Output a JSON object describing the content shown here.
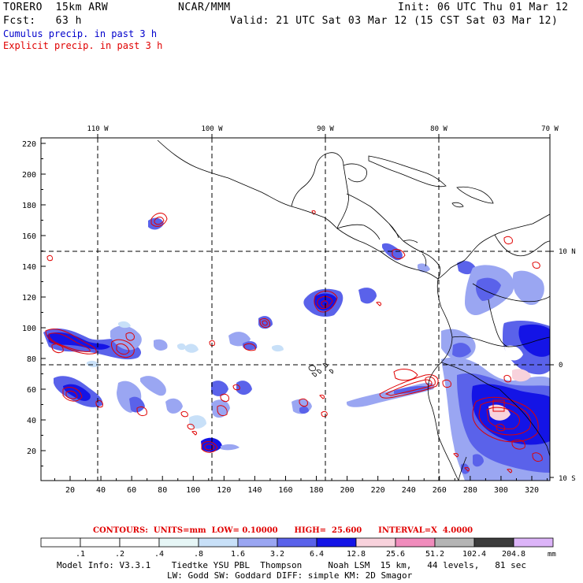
{
  "header": {
    "model": "TORERO  15km ARW",
    "source": "NCAR/MMM",
    "init": "Init: 06 UTC Thu 01 Mar 12",
    "forecast": "Fcst:   63 h",
    "valid": "Valid: 21 UTC Sat 03 Mar 12 (15 CST Sat 03 Mar 12)"
  },
  "legend_lines": {
    "cumulus": "Cumulus precip. in past 3 h",
    "explicit": "Explicit precip. in past 3 h"
  },
  "map": {
    "lon_labels": [
      "110 W",
      "100 W",
      "90 W",
      "80 W",
      "70 W"
    ],
    "lat_labels": [
      "10 N",
      "0",
      "10 S"
    ],
    "x_ticks": [
      "20",
      "40",
      "60",
      "80",
      "100",
      "120",
      "140",
      "160",
      "180",
      "200",
      "220",
      "240",
      "260",
      "280",
      "300",
      "320"
    ],
    "y_ticks": [
      "20",
      "40",
      "60",
      "80",
      "100",
      "120",
      "140",
      "160",
      "180",
      "200",
      "220"
    ]
  },
  "contour_text": "CONTOURS:  UNITS=mm  LOW= 0.10000      HIGH=  25.600      INTERVAL=X  4.0000",
  "colorbar": {
    "labels": [
      ".1",
      ".2",
      ".4",
      ".8",
      "1.6",
      "3.2",
      "6.4",
      "12.8",
      "25.6",
      "51.2",
      "102.4",
      "204.8"
    ],
    "unit": "mm",
    "colors": [
      "#ffffff",
      "#ffffff",
      "#ffffff",
      "#e6f6f6",
      "#c8e0f8",
      "#9aa6f2",
      "#5a62ea",
      "#1414e6",
      "#f8d2dc",
      "#f08cbc",
      "#b4b4b4",
      "#3c3c3c",
      "#dcb4f8"
    ]
  },
  "footer": {
    "line1": "Model Info: V3.3.1    Tiedtke YSU PBL  Thompson     Noah LSM  15 km,   44 levels,   81 sec",
    "line2": "LW: Godd SW: Goddard DIFF: simple KM: 2D Smagor"
  }
}
